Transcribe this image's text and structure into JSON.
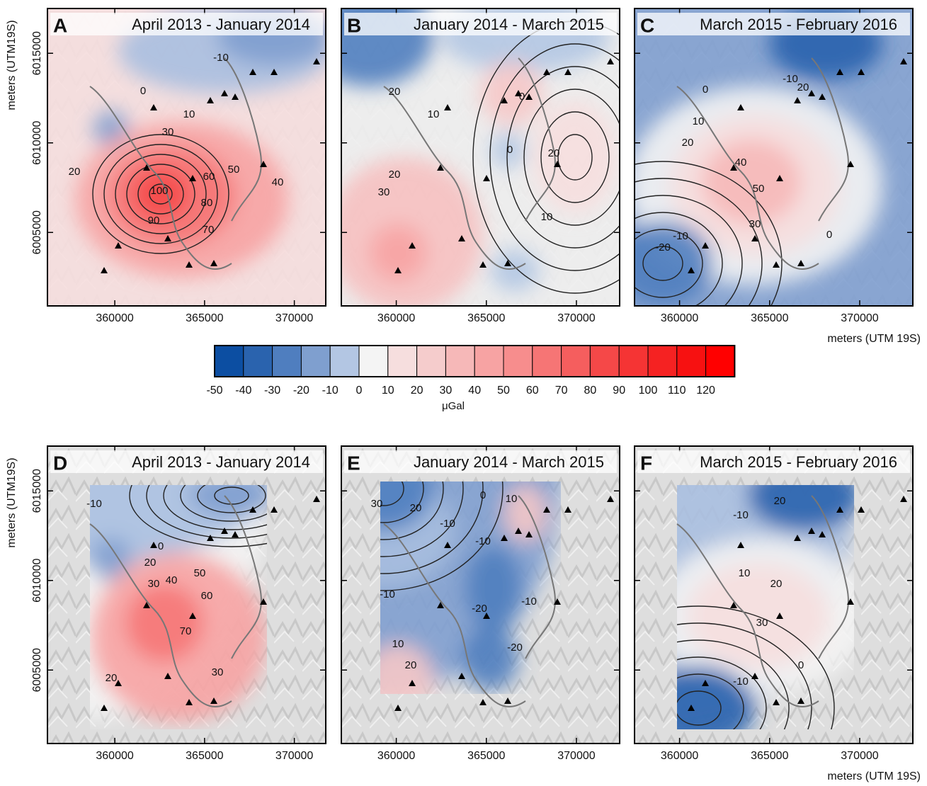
{
  "chart_data": [
    {
      "type": "contour",
      "label": "A",
      "title": "April 2013 - January 2014",
      "ylabel": "meters (UTM19S)",
      "xlim": [
        356250,
        371750
      ],
      "ylim": [
        6000900,
        6017500
      ],
      "xticks": [
        360000,
        365000,
        370000
      ],
      "yticks": [
        6005000,
        6010000,
        6015000
      ],
      "contour_labels": [
        -10,
        0,
        10,
        30,
        20,
        50,
        40,
        60,
        100,
        80,
        90,
        70
      ]
    },
    {
      "type": "contour",
      "label": "B",
      "title": "January 2014 - March 2015",
      "xlim": [
        356950,
        372400
      ],
      "ylim": [
        6000900,
        6017500
      ],
      "xticks": [
        360000,
        365000,
        370000
      ],
      "yticks": [
        6005000,
        6010000,
        6015000
      ],
      "contour_labels": [
        0,
        20,
        10,
        20,
        30,
        0,
        20,
        10
      ]
    },
    {
      "type": "contour",
      "label": "C",
      "title": "March 2015 - February 2016",
      "xlabel": "meters (UTM 19S)",
      "xlim": [
        357500,
        372950
      ],
      "ylim": [
        6000900,
        6017500
      ],
      "xticks": [
        360000,
        365000,
        370000
      ],
      "yticks": [
        6005000,
        6010000,
        6015000
      ],
      "contour_labels": [
        -10,
        20,
        0,
        10,
        20,
        40,
        50,
        30,
        0,
        -10,
        -20
      ]
    },
    {
      "type": "contour",
      "label": "D",
      "title": "April 2013 - January 2014",
      "ylabel": "meters (UTM19S)",
      "xlim": [
        356250,
        371750
      ],
      "ylim": [
        6000900,
        6017500
      ],
      "xticks": [
        360000,
        365000,
        370000
      ],
      "yticks": [
        6005000,
        6010000,
        6015000
      ],
      "contour_labels": [
        -10,
        0,
        20,
        30,
        40,
        50,
        60,
        70,
        30,
        20
      ]
    },
    {
      "type": "contour",
      "label": "E",
      "title": "January 2014 - March 2015",
      "xlim": [
        356950,
        372400
      ],
      "ylim": [
        6000900,
        6017500
      ],
      "xticks": [
        360000,
        365000,
        370000
      ],
      "yticks": [
        6005000,
        6010000,
        6015000
      ],
      "contour_labels": [
        30,
        20,
        -10,
        0,
        10,
        -10,
        -10,
        -20,
        -10,
        -20,
        10,
        20
      ]
    },
    {
      "type": "contour",
      "label": "F",
      "title": "March 2015 - February 2016",
      "xlabel": "meters (UTM 19S)",
      "xlim": [
        357500,
        372950
      ],
      "ylim": [
        6000900,
        6017500
      ],
      "xticks": [
        360000,
        365000,
        370000
      ],
      "yticks": [
        6005000,
        6010000,
        6015000
      ],
      "contour_labels": [
        20,
        -10,
        10,
        20,
        30,
        0,
        -10
      ]
    },
    {
      "type": "colorbar",
      "label": "μGal",
      "ticks": [
        -50,
        -40,
        -30,
        -20,
        -10,
        0,
        10,
        20,
        30,
        40,
        50,
        60,
        70,
        80,
        90,
        100,
        110,
        120
      ],
      "colors": [
        "#0c4ea2",
        "#2a63ae",
        "#4f7ebf",
        "#7f9fcf",
        "#b3c6e3",
        "#f4f4f4",
        "#f6dede",
        "#f5cccc",
        "#f6b8b8",
        "#f7a3a3",
        "#f78d8d",
        "#f67575",
        "#f55e5e",
        "#f54848",
        "#f53434",
        "#f52222",
        "#f71111",
        "#ff0000"
      ]
    }
  ]
}
